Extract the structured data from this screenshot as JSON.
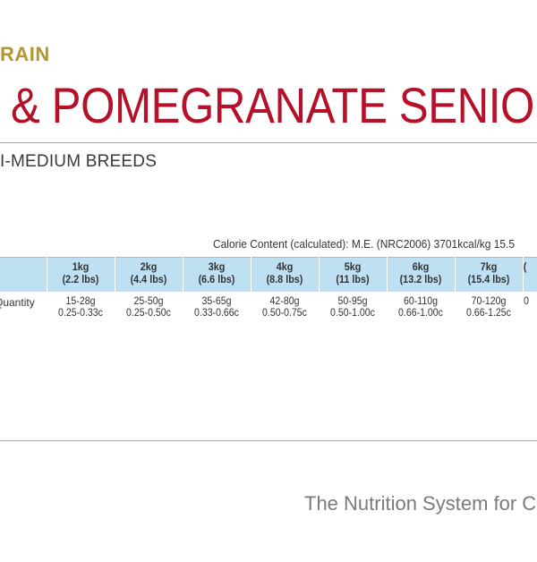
{
  "header": {
    "eyebrow": "RAIN",
    "title": "& POMEGRANATE SENIOR",
    "subtitle": "I-MEDIUM BREEDS"
  },
  "calorie": {
    "text": "Calorie Content (calculated): M.E. (NRC2006) 3701kcal/kg   15.5"
  },
  "feeding_table": {
    "row_label": "Quantity",
    "columns": [
      {
        "weight": "1kg",
        "lbs": "(2.2 lbs)",
        "grams": "15-28g",
        "cups": "0.25-0.33c"
      },
      {
        "weight": "2kg",
        "lbs": "(4.4 lbs)",
        "grams": "25-50g",
        "cups": "0.25-0.50c"
      },
      {
        "weight": "3kg",
        "lbs": "(6.6 lbs)",
        "grams": "35-65g",
        "cups": "0.33-0.66c"
      },
      {
        "weight": "4kg",
        "lbs": "(8.8 lbs)",
        "grams": "42-80g",
        "cups": "0.50-0.75c"
      },
      {
        "weight": "5kg",
        "lbs": "(11 lbs)",
        "grams": "50-95g",
        "cups": "0.50-1.00c"
      },
      {
        "weight": "6kg",
        "lbs": "(13.2 lbs)",
        "grams": "60-110g",
        "cups": "0.66-1.00c"
      },
      {
        "weight": "7kg",
        "lbs": "(15.4 lbs)",
        "grams": "70-120g",
        "cups": "0.66-1.25c"
      },
      {
        "weight": "",
        "lbs": "(",
        "grams": "",
        "cups": "0"
      }
    ]
  },
  "footer": {
    "tagline": "The Nutrition System for C"
  }
}
